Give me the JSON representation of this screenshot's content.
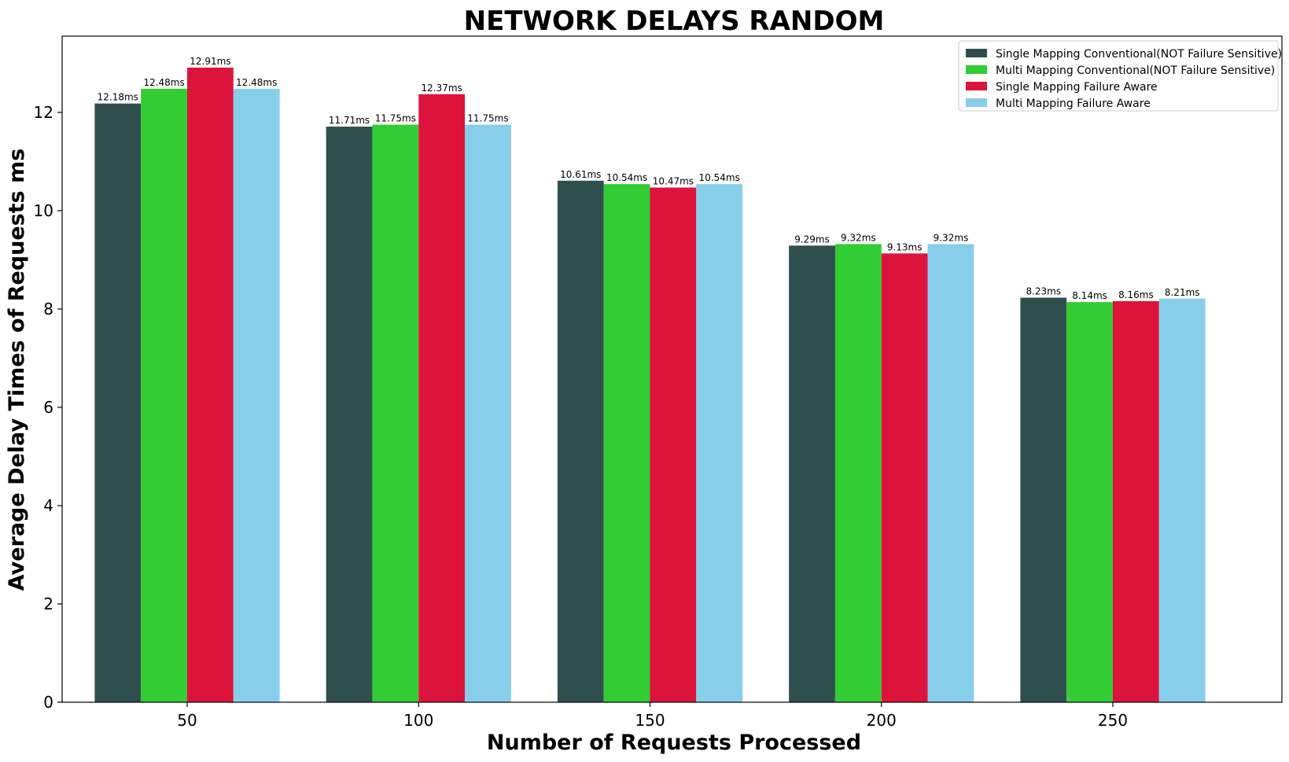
{
  "chart_data": {
    "type": "bar",
    "title": "NETWORK DELAYS RANDOM",
    "xlabel": "Number of Requests Processed",
    "ylabel": "Average Delay Times of Requests ms",
    "categories": [
      "50",
      "100",
      "150",
      "200",
      "250"
    ],
    "ylim": [
      0,
      13.55
    ],
    "yticks": [
      "0",
      "2",
      "4",
      "6",
      "8",
      "10",
      "12"
    ],
    "grid": false,
    "legend_position": "top-right",
    "value_suffix": "ms",
    "series": [
      {
        "name": "Single Mapping Conventional(NOT Failure Sensitive)",
        "color": "#2f4f4f",
        "values": [
          12.18,
          11.71,
          10.61,
          9.29,
          8.23
        ]
      },
      {
        "name": "Multi Mapping Conventional(NOT Failure Sensitive)",
        "color": "#32cd32",
        "values": [
          12.48,
          11.75,
          10.54,
          9.32,
          8.14
        ]
      },
      {
        "name": "Single Mapping Failure Aware",
        "color": "#dc143c",
        "values": [
          12.91,
          12.37,
          10.47,
          9.13,
          8.16
        ]
      },
      {
        "name": "Multi Mapping Failure Aware",
        "color": "#87ceeb",
        "values": [
          12.48,
          11.75,
          10.54,
          9.32,
          8.21
        ]
      }
    ]
  }
}
